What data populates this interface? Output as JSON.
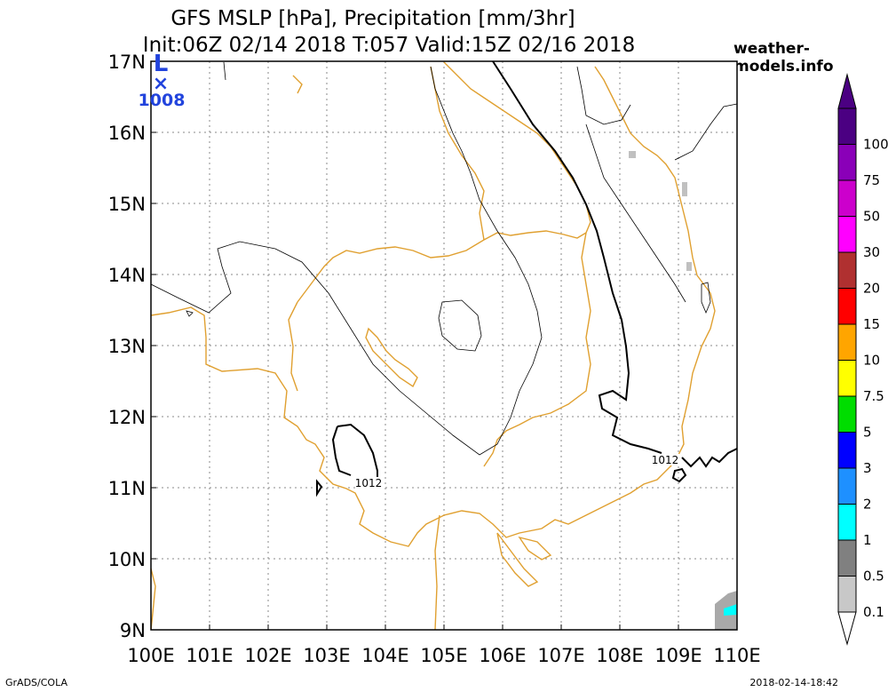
{
  "title": {
    "line1": "GFS MSLP [hPa], Precipitation [mm/3hr]",
    "line2": "Init:06Z 02/14 2018 T:057 Valid:15Z 02/16 2018"
  },
  "website": "weather-models.info",
  "footer": {
    "left": "GrADS/COLA",
    "right": "2018-02-14-18:42"
  },
  "map": {
    "lon_range": [
      100,
      110
    ],
    "lat_range": [
      9,
      17
    ],
    "lon_labels": [
      "100E",
      "101E",
      "102E",
      "103E",
      "104E",
      "105E",
      "106E",
      "107E",
      "108E",
      "109E",
      "110E"
    ],
    "lat_labels": [
      "17N",
      "16N",
      "15N",
      "14N",
      "13N",
      "12N",
      "11N",
      "10N",
      "9N"
    ],
    "gridlines": "dotted",
    "coastline_color": "#e0a030",
    "contour_color": "#000000"
  },
  "pressure_centers": [
    {
      "type": "L",
      "value": "1008",
      "color": "#2244dd"
    }
  ],
  "isobar_labels": [
    {
      "text": "1012"
    },
    {
      "text": "1012"
    }
  ],
  "legend": {
    "labels": [
      "100",
      "75",
      "50",
      "30",
      "20",
      "15",
      "10",
      "7.5",
      "5",
      "3",
      "2",
      "1",
      "0.5",
      "0.1"
    ],
    "colors": [
      "#4b0082",
      "#8a00b8",
      "#cc00cc",
      "#ff00ff",
      "#b03030",
      "#ff0000",
      "#ffa500",
      "#ffff00",
      "#00dd00",
      "#0000ff",
      "#1e90ff",
      "#00ffff",
      "#808080",
      "#c8c8c8"
    ]
  }
}
